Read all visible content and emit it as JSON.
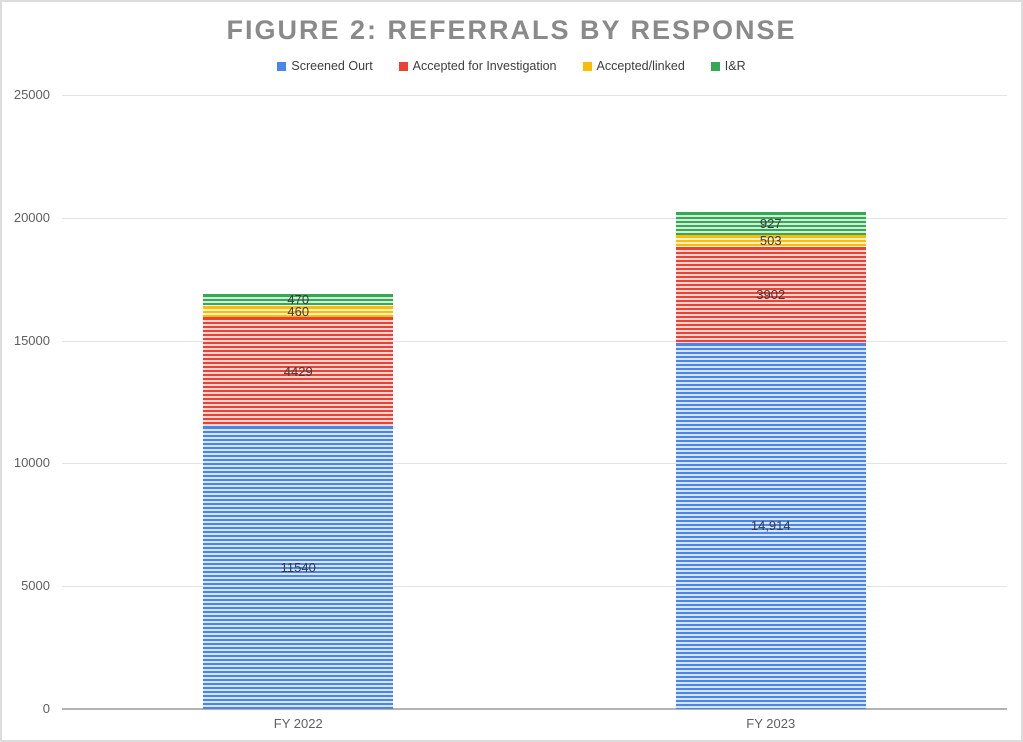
{
  "chart_data": {
    "type": "bar",
    "stacked": true,
    "title": "FIGURE 2: REFERRALS BY RESPONSE",
    "categories": [
      "FY 2022",
      "FY 2023"
    ],
    "series": [
      {
        "name": "Screened Ourt",
        "color": "#4a86e8",
        "values": [
          11540,
          14914
        ],
        "data_labels": [
          "11540",
          "14,914"
        ]
      },
      {
        "name": "Accepted for Investigation",
        "color": "#ea4335",
        "values": [
          4429,
          3902
        ],
        "data_labels": [
          "4429",
          "3902"
        ]
      },
      {
        "name": "Accepted/linked",
        "color": "#fbbc04",
        "values": [
          460,
          503
        ],
        "data_labels": [
          "460",
          "503"
        ]
      },
      {
        "name": "I&R",
        "color": "#34a853",
        "values": [
          470,
          927
        ],
        "data_labels": [
          "470",
          "927"
        ]
      }
    ],
    "y_axis": {
      "min": 0,
      "max": 25000,
      "step": 5000,
      "tick_labels": [
        "0",
        "5000",
        "10000",
        "15000",
        "20000",
        "25000"
      ]
    },
    "xlabel": "",
    "ylabel": "",
    "ylim": [
      0,
      25000
    ],
    "grid": true,
    "legend_position": "top",
    "bar_fill_pattern": "horizontal-stripes"
  }
}
